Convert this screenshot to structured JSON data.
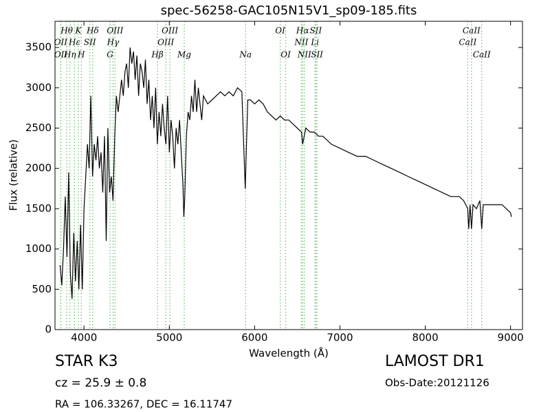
{
  "chart_data": {
    "type": "line",
    "title": "spec-56258-GAC105N15V1_sp09-185.fits",
    "x_label": "Wavelength (Å)",
    "y_label": "Flux (relative)",
    "xlim": [
      3660,
      9140
    ],
    "ylim": [
      0,
      3825
    ],
    "xticks": [
      4000,
      5000,
      6000,
      7000,
      8000,
      9000
    ],
    "yticks": [
      0,
      500,
      1000,
      1500,
      2000,
      2500,
      3000,
      3500
    ],
    "line_color": "#000000",
    "marker_color": "#66bb66",
    "lines": [
      {
        "label": "OII",
        "x": 3727
      },
      {
        "label": "OII",
        "x": 3729
      },
      {
        "label": "Hθ",
        "x": 3798
      },
      {
        "label": "Hη",
        "x": 3835
      },
      {
        "label": "Hε",
        "x": 3889
      },
      {
        "label": "K",
        "x": 3934
      },
      {
        "label": "H",
        "x": 3968
      },
      {
        "label": "SII",
        "x": 4069
      },
      {
        "label": "Hδ",
        "x": 4102
      },
      {
        "label": "G",
        "x": 4305
      },
      {
        "label": "Hγ",
        "x": 4341
      },
      {
        "label": "OIII",
        "x": 4364
      },
      {
        "label": "Hβ",
        "x": 4861
      },
      {
        "label": "OIII",
        "x": 4959
      },
      {
        "label": "OIII",
        "x": 5007
      },
      {
        "label": "Mg",
        "x": 5175
      },
      {
        "label": "Na",
        "x": 5894
      },
      {
        "label": "OI",
        "x": 6300
      },
      {
        "label": "OI",
        "x": 6364
      },
      {
        "label": "NII",
        "x": 6548
      },
      {
        "label": "Hα",
        "x": 6563
      },
      {
        "label": "NII",
        "x": 6583
      },
      {
        "label": "Li",
        "x": 6708
      },
      {
        "label": "SII",
        "x": 6716
      },
      {
        "label": "SII",
        "x": 6731
      },
      {
        "label": "CaII",
        "x": 8498
      },
      {
        "label": "CaII",
        "x": 8542
      },
      {
        "label": "CaII",
        "x": 8662
      }
    ],
    "x": [
      3720,
      3740,
      3760,
      3780,
      3800,
      3820,
      3840,
      3860,
      3880,
      3900,
      3920,
      3940,
      3960,
      3980,
      4000,
      4020,
      4040,
      4060,
      4080,
      4100,
      4120,
      4140,
      4160,
      4180,
      4200,
      4220,
      4240,
      4260,
      4280,
      4300,
      4320,
      4340,
      4360,
      4380,
      4400,
      4420,
      4440,
      4460,
      4480,
      4500,
      4520,
      4540,
      4560,
      4580,
      4600,
      4620,
      4640,
      4660,
      4680,
      4700,
      4720,
      4740,
      4760,
      4780,
      4800,
      4820,
      4840,
      4860,
      4880,
      4900,
      4920,
      4940,
      4960,
      4980,
      5000,
      5020,
      5040,
      5060,
      5080,
      5100,
      5120,
      5140,
      5160,
      5170,
      5180,
      5200,
      5220,
      5240,
      5260,
      5280,
      5300,
      5320,
      5340,
      5360,
      5380,
      5400,
      5450,
      5500,
      5550,
      5600,
      5650,
      5700,
      5750,
      5800,
      5850,
      5890,
      5920,
      5950,
      6000,
      6050,
      6100,
      6150,
      6200,
      6250,
      6300,
      6350,
      6400,
      6450,
      6500,
      6550,
      6563,
      6600,
      6650,
      6700,
      6750,
      6800,
      6900,
      7000,
      7100,
      7200,
      7300,
      7400,
      7500,
      7600,
      7700,
      7800,
      7900,
      8000,
      8100,
      8200,
      8300,
      8400,
      8450,
      8498,
      8510,
      8525,
      8542,
      8560,
      8600,
      8640,
      8662,
      8680,
      8700,
      8800,
      8900,
      9000,
      9010
    ],
    "values": [
      800,
      550,
      1000,
      1650,
      900,
      1950,
      700,
      380,
      1200,
      600,
      1100,
      500,
      1300,
      500,
      1500,
      1900,
      2300,
      2000,
      2900,
      1900,
      2300,
      2100,
      2400,
      2000,
      2200,
      1700,
      2400,
      1100,
      2500,
      1700,
      1900,
      1600,
      2400,
      2900,
      2700,
      2900,
      3100,
      2900,
      3200,
      3300,
      3000,
      3500,
      3300,
      3450,
      3100,
      3400,
      2900,
      3300,
      3200,
      3000,
      3350,
      2800,
      3100,
      2600,
      2900,
      2500,
      3000,
      2300,
      2700,
      2400,
      2800,
      2500,
      2300,
      2900,
      2200,
      2600,
      2400,
      2000,
      2500,
      2300,
      2600,
      2200,
      1800,
      1400,
      1600,
      2400,
      2700,
      2600,
      2900,
      2700,
      3100,
      2700,
      3000,
      2800,
      2600,
      2900,
      2800,
      2850,
      2900,
      2950,
      2900,
      2950,
      2900,
      3000,
      2950,
      1750,
      2850,
      2850,
      2800,
      2850,
      2800,
      2700,
      2650,
      2600,
      2650,
      2600,
      2600,
      2550,
      2500,
      2450,
      2300,
      2500,
      2450,
      2450,
      2400,
      2400,
      2300,
      2250,
      2200,
      2150,
      2150,
      2100,
      2050,
      2000,
      1950,
      1900,
      1850,
      1800,
      1750,
      1700,
      1650,
      1650,
      1600,
      1500,
      1250,
      1550,
      1250,
      1550,
      1500,
      1600,
      1250,
      1550,
      1550,
      1550,
      1550,
      1450,
      1400
    ],
    "annotations": [
      "STAR   K3",
      "cz = 25.9 ± 0.8",
      "RA = 106.33267, DEC = 16.11747",
      "LAMOST DR1",
      "Obs-Date:20121126"
    ]
  }
}
